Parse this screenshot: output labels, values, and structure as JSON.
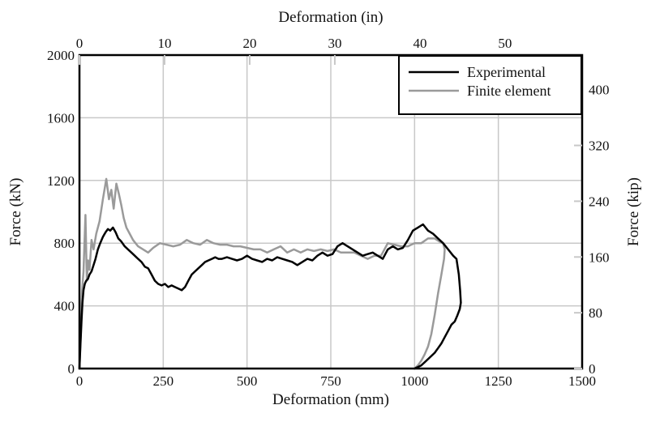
{
  "chart_data": {
    "type": "line",
    "xlabel": "Deformation (mm)",
    "x2label": "Deformation (in)",
    "ylabel": "Force (kN)",
    "y2label": "Force (kip)",
    "xlim": [
      0,
      1500
    ],
    "ylim": [
      0,
      2000
    ],
    "x2lim": [
      0,
      59.055
    ],
    "y2lim": [
      0,
      449.6
    ],
    "xticks": [
      "0",
      "250",
      "500",
      "750",
      "1000",
      "1250",
      "1500"
    ],
    "yticks": [
      "0",
      "400",
      "800",
      "1200",
      "1600",
      "2000"
    ],
    "x2ticks": [
      "0",
      "10",
      "20",
      "30",
      "40",
      "50"
    ],
    "y2ticks": [
      "0",
      "80",
      "160",
      "240",
      "320",
      "400"
    ],
    "grid": true,
    "legend_position": "top-right",
    "colors": {
      "experimental": "#000000",
      "finite_element": "#9a9a9a",
      "grid": "#c8c8c8"
    },
    "series": [
      {
        "name": "Finite element",
        "x": [
          0,
          4,
          8,
          12,
          18,
          22,
          26,
          30,
          36,
          42,
          50,
          60,
          70,
          80,
          88,
          95,
          102,
          110,
          118,
          125,
          132,
          140,
          150,
          160,
          175,
          190,
          205,
          220,
          240,
          260,
          280,
          300,
          320,
          340,
          360,
          380,
          400,
          420,
          440,
          460,
          480,
          500,
          520,
          540,
          560,
          580,
          600,
          620,
          640,
          660,
          680,
          700,
          720,
          740,
          760,
          780,
          800,
          820,
          840,
          860,
          880,
          900,
          920,
          940,
          960,
          980,
          1000,
          1020,
          1040,
          1060,
          1075,
          1085,
          1090,
          1088,
          1080,
          1070,
          1060,
          1050,
          1040,
          1030,
          1020,
          1010,
          1000
        ],
        "y": [
          0,
          240,
          500,
          620,
          980,
          560,
          690,
          630,
          820,
          760,
          860,
          940,
          1080,
          1210,
          1080,
          1140,
          1020,
          1180,
          1110,
          1040,
          960,
          900,
          860,
          820,
          780,
          760,
          740,
          770,
          800,
          790,
          780,
          790,
          820,
          800,
          790,
          820,
          800,
          790,
          790,
          780,
          780,
          770,
          760,
          760,
          740,
          760,
          780,
          740,
          760,
          740,
          760,
          750,
          760,
          750,
          760,
          740,
          740,
          740,
          720,
          700,
          720,
          720,
          800,
          790,
          780,
          780,
          800,
          800,
          830,
          830,
          810,
          800,
          760,
          700,
          600,
          480,
          340,
          220,
          140,
          90,
          50,
          20,
          0
        ]
      },
      {
        "name": "Experimental",
        "x": [
          0,
          3,
          6,
          9,
          12,
          16,
          20,
          25,
          30,
          36,
          42,
          48,
          55,
          62,
          70,
          78,
          85,
          92,
          100,
          108,
          116,
          125,
          135,
          145,
          155,
          165,
          175,
          185,
          195,
          205,
          215,
          225,
          235,
          245,
          255,
          265,
          275,
          285,
          295,
          305,
          315,
          325,
          335,
          345,
          355,
          365,
          375,
          385,
          395,
          405,
          415,
          425,
          440,
          455,
          470,
          485,
          500,
          515,
          530,
          545,
          560,
          575,
          590,
          605,
          620,
          635,
          650,
          665,
          680,
          695,
          710,
          725,
          740,
          755,
          770,
          785,
          800,
          815,
          830,
          845,
          860,
          875,
          890,
          905,
          920,
          935,
          950,
          965,
          980,
          995,
          1010,
          1025,
          1040,
          1055,
          1070,
          1085,
          1100,
          1115,
          1125,
          1132,
          1136,
          1138,
          1135,
          1128,
          1120,
          1110,
          1100,
          1090,
          1080,
          1070,
          1060,
          1050,
          1040,
          1030,
          1020,
          1010,
          1000
        ],
        "y": [
          0,
          150,
          300,
          420,
          500,
          540,
          560,
          570,
          600,
          620,
          660,
          700,
          760,
          800,
          840,
          870,
          890,
          880,
          900,
          870,
          830,
          810,
          780,
          760,
          740,
          720,
          700,
          680,
          650,
          640,
          600,
          560,
          540,
          530,
          540,
          520,
          530,
          520,
          510,
          500,
          520,
          560,
          600,
          620,
          640,
          660,
          680,
          690,
          700,
          710,
          700,
          700,
          710,
          700,
          690,
          700,
          720,
          700,
          690,
          680,
          700,
          690,
          710,
          700,
          690,
          680,
          660,
          680,
          700,
          690,
          720,
          740,
          720,
          730,
          780,
          800,
          780,
          760,
          740,
          720,
          730,
          740,
          720,
          700,
          760,
          780,
          760,
          770,
          820,
          880,
          900,
          920,
          880,
          860,
          830,
          800,
          760,
          720,
          700,
          600,
          500,
          420,
          380,
          340,
          300,
          280,
          240,
          200,
          160,
          130,
          100,
          80,
          60,
          40,
          20,
          10,
          0
        ]
      }
    ]
  }
}
